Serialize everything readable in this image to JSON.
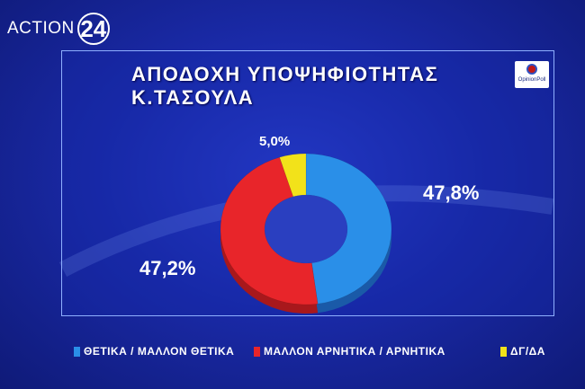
{
  "channel": {
    "name": "ACTION",
    "number": "24"
  },
  "source_logo_text": "OpinionPoll",
  "colors": {
    "positive": "#2a8fe8",
    "negative": "#e8252a",
    "dkna": "#f2e21a"
  },
  "chart_data": {
    "type": "pie",
    "title": "ΑΠΟΔΟΧΗ ΥΠΟΨΗΦΙΟΤΗΤΑΣ Κ.ΤΑΣΟΥΛΑ",
    "donut": true,
    "series": [
      {
        "name": "ΘΕΤΙΚΑ / ΜΑΛΛΟΝ ΘΕΤΙΚΑ",
        "value": 47.8,
        "label": "47,8%"
      },
      {
        "name": "ΜΑΛΛΟΝ ΑΡΝΗΤΙΚΑ / ΑΡΝΗΤΙΚΑ",
        "value": 47.2,
        "label": "47,2%"
      },
      {
        "name": "ΔΓ/ΔΑ",
        "value": 5.0,
        "label": "5,0%"
      }
    ],
    "legend_position": "bottom"
  }
}
